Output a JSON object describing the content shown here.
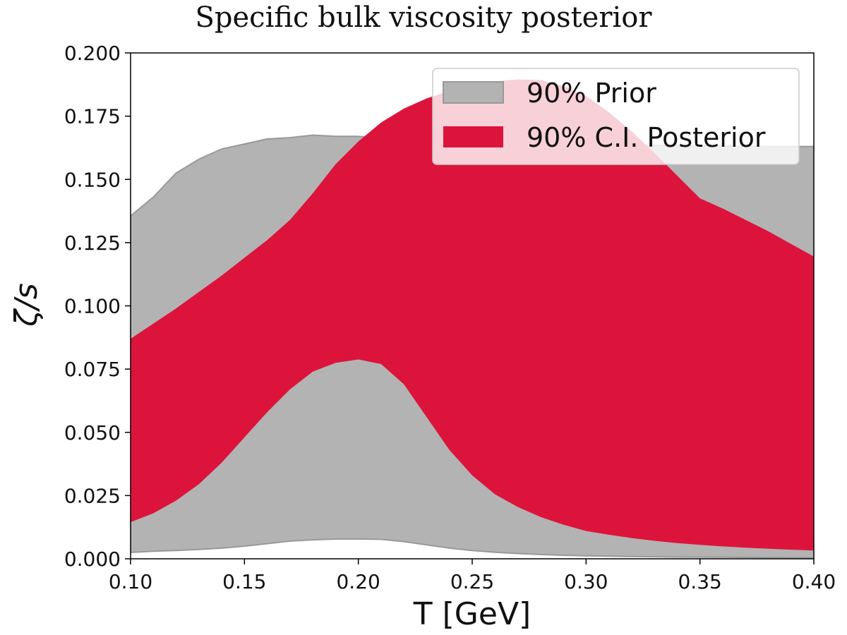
{
  "chart_data": {
    "type": "area",
    "title": "Specific bulk viscosity posterior",
    "xlabel": "T [GeV]",
    "ylabel": "ζ/s",
    "xlim": [
      0.1,
      0.4
    ],
    "ylim": [
      0.0,
      0.2
    ],
    "x_ticks": [
      "0.10",
      "0.15",
      "0.20",
      "0.25",
      "0.30",
      "0.35",
      "0.40"
    ],
    "y_ticks": [
      "0.000",
      "0.025",
      "0.050",
      "0.075",
      "0.100",
      "0.125",
      "0.150",
      "0.175",
      "0.200"
    ],
    "legend_position": "top-right",
    "grid": false,
    "series": [
      {
        "name": "90% Prior",
        "color": "#b3b3b3",
        "x": [
          0.1,
          0.11,
          0.12,
          0.13,
          0.14,
          0.15,
          0.16,
          0.17,
          0.18,
          0.19,
          0.2,
          0.21,
          0.22,
          0.23,
          0.24,
          0.25,
          0.26,
          0.27,
          0.28,
          0.29,
          0.3,
          0.32,
          0.34,
          0.36,
          0.38,
          0.4
        ],
        "lower": [
          0.0025,
          0.003,
          0.0033,
          0.0037,
          0.0042,
          0.005,
          0.006,
          0.007,
          0.0075,
          0.0078,
          0.0078,
          0.0077,
          0.0068,
          0.0055,
          0.0042,
          0.0033,
          0.0026,
          0.0021,
          0.0017,
          0.0014,
          0.0012,
          0.0009,
          0.0007,
          0.0006,
          0.0005,
          0.0004
        ],
        "upper": [
          0.1355,
          0.143,
          0.1525,
          0.158,
          0.162,
          0.164,
          0.166,
          0.1665,
          0.1675,
          0.167,
          0.167,
          0.1665,
          0.166,
          0.1655,
          0.165,
          0.1648,
          0.1646,
          0.1644,
          0.1642,
          0.164,
          0.1638,
          0.1636,
          0.1634,
          0.1632,
          0.163,
          0.163
        ]
      },
      {
        "name": "90% C.I. Posterior",
        "color": "#dc143c",
        "x": [
          0.1,
          0.11,
          0.12,
          0.13,
          0.14,
          0.15,
          0.16,
          0.17,
          0.18,
          0.19,
          0.2,
          0.21,
          0.22,
          0.23,
          0.24,
          0.25,
          0.26,
          0.27,
          0.28,
          0.29,
          0.3,
          0.31,
          0.32,
          0.33,
          0.34,
          0.35,
          0.36,
          0.37,
          0.38,
          0.39,
          0.4
        ],
        "lower": [
          0.0145,
          0.018,
          0.023,
          0.0295,
          0.038,
          0.048,
          0.058,
          0.067,
          0.074,
          0.0775,
          0.0788,
          0.077,
          0.069,
          0.056,
          0.043,
          0.033,
          0.0255,
          0.0205,
          0.0165,
          0.0135,
          0.011,
          0.0095,
          0.0082,
          0.0071,
          0.0062,
          0.0055,
          0.0049,
          0.0044,
          0.004,
          0.0036,
          0.0033
        ],
        "upper": [
          0.087,
          0.093,
          0.099,
          0.1055,
          0.112,
          0.119,
          0.126,
          0.134,
          0.1445,
          0.156,
          0.165,
          0.1725,
          0.178,
          0.182,
          0.185,
          0.1875,
          0.1888,
          0.1895,
          0.1893,
          0.187,
          0.183,
          0.1765,
          0.169,
          0.1605,
          0.1515,
          0.1425,
          0.1385,
          0.134,
          0.1295,
          0.1245,
          0.1195
        ]
      }
    ]
  }
}
